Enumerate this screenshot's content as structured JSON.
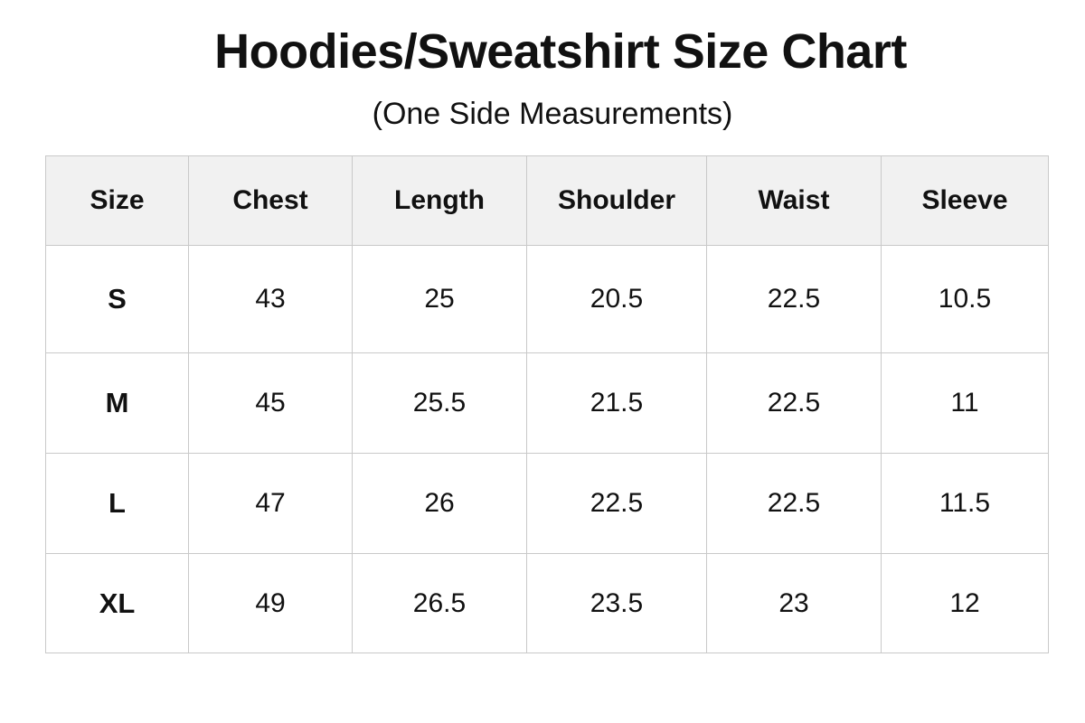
{
  "title": "Hoodies/Sweatshirt Size Chart",
  "subtitle": "(One Side Measurements)",
  "table": {
    "headers": [
      "Size",
      "Chest",
      "Length",
      "Shoulder",
      "Waist",
      "Sleeve"
    ],
    "rows": [
      [
        "S",
        "43",
        "25",
        "20.5",
        "22.5",
        "10.5"
      ],
      [
        "M",
        "45",
        "25.5",
        "21.5",
        "22.5",
        "11"
      ],
      [
        "L",
        "47",
        "26",
        "22.5",
        "22.5",
        "11.5"
      ],
      [
        "XL",
        "49",
        "26.5",
        "23.5",
        "23",
        "12"
      ]
    ]
  },
  "colors": {
    "header_background": "#f1f1f1",
    "border": "#c9c9c9",
    "text": "#111111"
  }
}
